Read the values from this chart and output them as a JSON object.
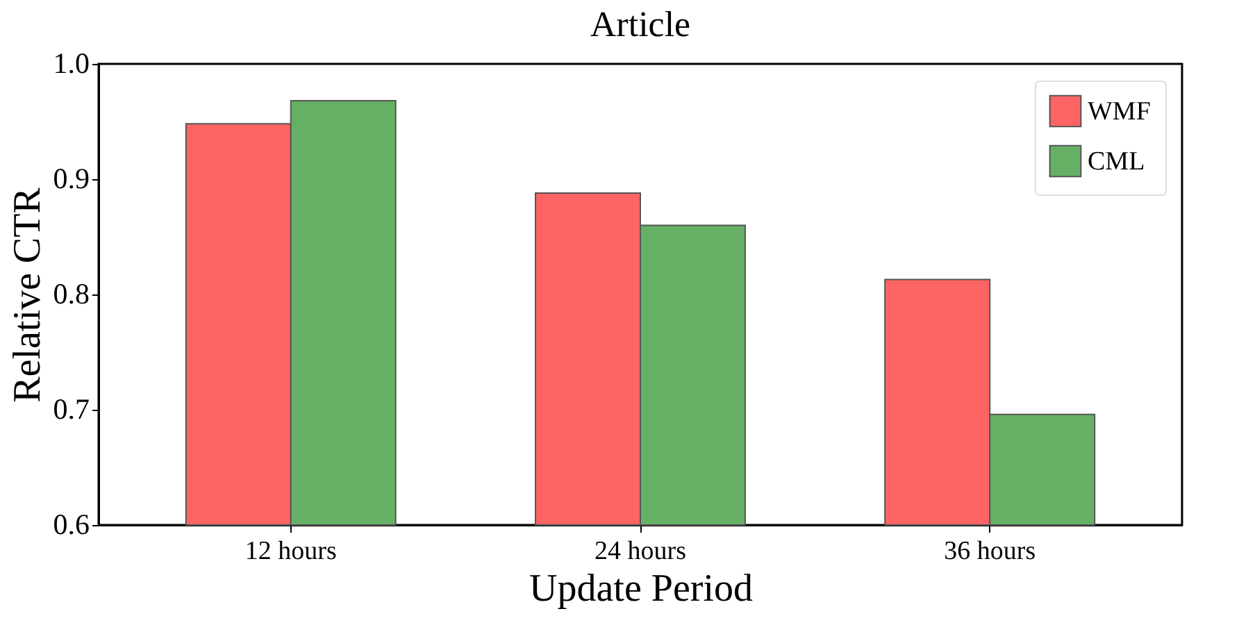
{
  "chart_data": {
    "type": "bar",
    "title": "Article",
    "xlabel": "Update Period",
    "ylabel": "Relative CTR",
    "categories": [
      "12 hours",
      "24 hours",
      "36 hours"
    ],
    "series": [
      {
        "name": "WMF",
        "color": "#ff6464",
        "values": [
          0.948,
          0.888,
          0.813
        ]
      },
      {
        "name": "CML",
        "color": "#65b065",
        "values": [
          0.968,
          0.86,
          0.696
        ]
      }
    ],
    "ylim": [
      0.6,
      1.0
    ],
    "yticks": [
      0.6,
      0.7,
      0.8,
      0.9,
      {
        "value": 1,
        "label": "1.0"
      }
    ],
    "grid": false,
    "legend": "top right"
  }
}
